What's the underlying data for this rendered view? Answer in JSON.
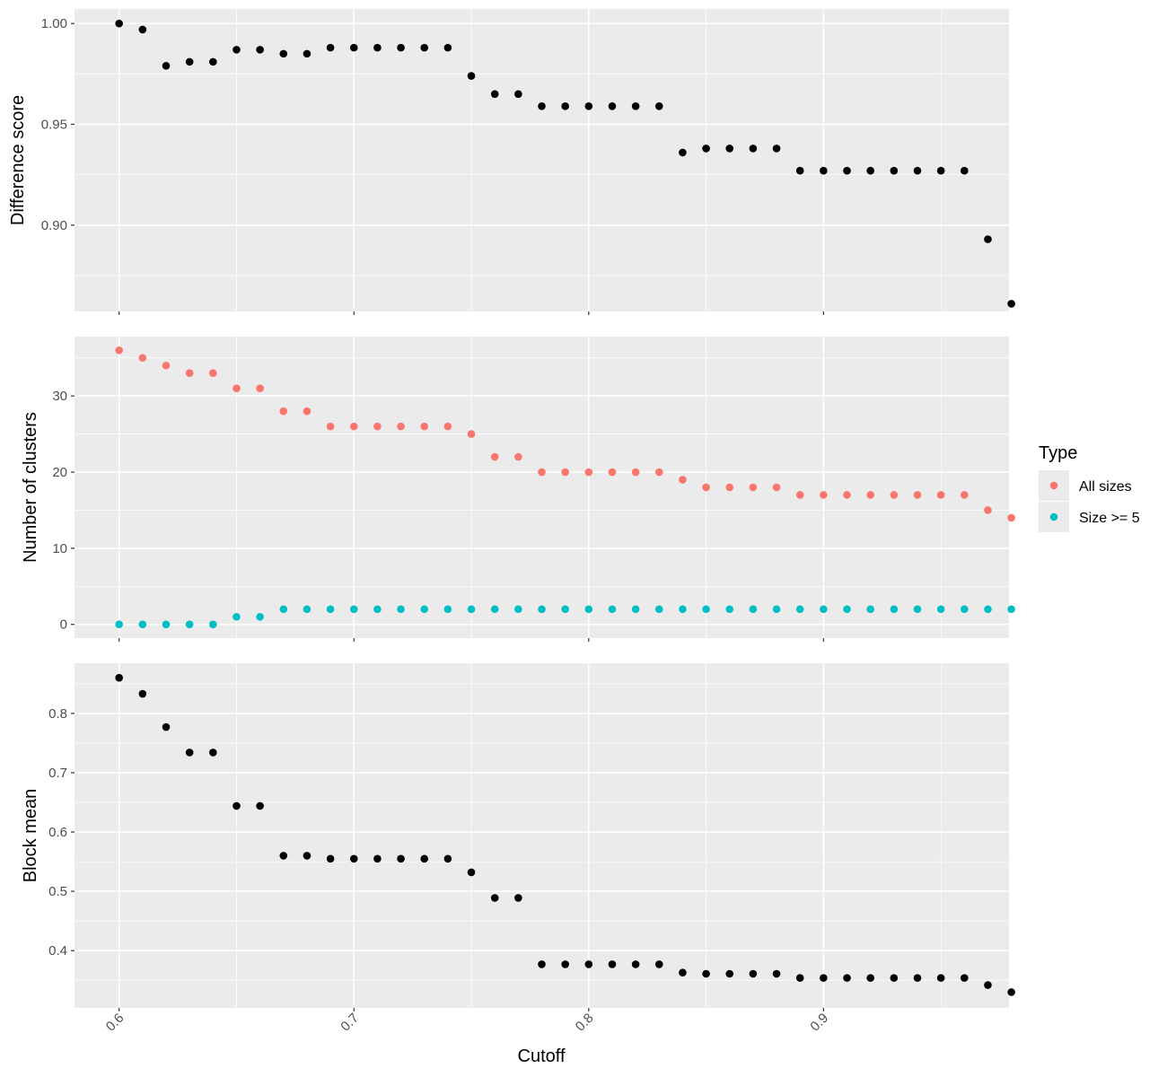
{
  "chart_data": {
    "type": "scatter",
    "xlabel": "Cutoff",
    "x": [
      0.6,
      0.61,
      0.62,
      0.63,
      0.64,
      0.65,
      0.66,
      0.67,
      0.68,
      0.69,
      0.7,
      0.71,
      0.72,
      0.73,
      0.74,
      0.75,
      0.76,
      0.77,
      0.78,
      0.79,
      0.8,
      0.81,
      0.82,
      0.83,
      0.84,
      0.85,
      0.86,
      0.87,
      0.88,
      0.89,
      0.9,
      0.91,
      0.92,
      0.93,
      0.94,
      0.95,
      0.96,
      0.97,
      0.98
    ],
    "x_ticks": [
      0.6,
      0.7,
      0.8,
      0.9
    ],
    "x_tick_labels": [
      "0.6",
      "0.7",
      "0.8",
      "0.9"
    ],
    "xlim": [
      0.581,
      0.979
    ],
    "grid": true,
    "panels": [
      {
        "id": "difference",
        "ylabel": "Difference score",
        "ylim": [
          0.8572,
          1.0072
        ],
        "y_ticks": [
          0.9,
          0.95,
          1.0
        ],
        "y_tick_labels": [
          "0.90",
          "0.95",
          "1.00"
        ],
        "series": [
          {
            "color": "#000000",
            "values": [
              1.0,
              0.997,
              0.979,
              0.981,
              0.981,
              0.987,
              0.987,
              0.985,
              0.985,
              0.988,
              0.988,
              0.988,
              0.988,
              0.988,
              0.988,
              0.974,
              0.965,
              0.965,
              0.959,
              0.959,
              0.959,
              0.959,
              0.959,
              0.959,
              0.936,
              0.938,
              0.938,
              0.938,
              0.938,
              0.927,
              0.927,
              0.927,
              0.927,
              0.927,
              0.927,
              0.927,
              0.927,
              0.893,
              0.861
            ]
          }
        ]
      },
      {
        "id": "clusters",
        "ylabel": "Number of clusters",
        "ylim": [
          -1.8,
          37.8
        ],
        "y_ticks": [
          0,
          10,
          20,
          30
        ],
        "y_tick_labels": [
          "0",
          "10",
          "20",
          "30"
        ],
        "series": [
          {
            "name": "All sizes",
            "color": "#F8766D",
            "values": [
              36,
              35,
              34,
              33,
              33,
              31,
              31,
              28,
              28,
              26,
              26,
              26,
              26,
              26,
              26,
              25,
              22,
              22,
              20,
              20,
              20,
              20,
              20,
              20,
              19,
              18,
              18,
              18,
              18,
              17,
              17,
              17,
              17,
              17,
              17,
              17,
              17,
              15,
              14
            ]
          },
          {
            "name": "Size >= 5",
            "color": "#00BFC4",
            "values": [
              0,
              0,
              0,
              0,
              0,
              1,
              1,
              2,
              2,
              2,
              2,
              2,
              2,
              2,
              2,
              2,
              2,
              2,
              2,
              2,
              2,
              2,
              2,
              2,
              2,
              2,
              2,
              2,
              2,
              2,
              2,
              2,
              2,
              2,
              2,
              2,
              2,
              2,
              2
            ]
          }
        ]
      },
      {
        "id": "blockmean",
        "ylabel": "Block mean",
        "ylim": [
          0.3035,
          0.8845
        ],
        "y_ticks": [
          0.4,
          0.5,
          0.6,
          0.7,
          0.8
        ],
        "y_tick_labels": [
          "0.4",
          "0.5",
          "0.6",
          "0.7",
          "0.8"
        ],
        "series": [
          {
            "color": "#000000",
            "values": [
              0.86,
              0.833,
              0.777,
              0.734,
              0.734,
              0.644,
              0.644,
              0.56,
              0.56,
              0.555,
              0.555,
              0.555,
              0.555,
              0.555,
              0.555,
              0.532,
              0.489,
              0.489,
              0.377,
              0.377,
              0.377,
              0.377,
              0.377,
              0.377,
              0.363,
              0.361,
              0.361,
              0.361,
              0.361,
              0.354,
              0.354,
              0.354,
              0.354,
              0.354,
              0.354,
              0.354,
              0.354,
              0.342,
              0.33
            ]
          }
        ]
      }
    ],
    "legend": {
      "title": "Type",
      "placement": "right",
      "entries": [
        {
          "label": "All sizes",
          "color": "#F8766D"
        },
        {
          "label": "Size >= 5",
          "color": "#00BFC4"
        }
      ]
    }
  }
}
